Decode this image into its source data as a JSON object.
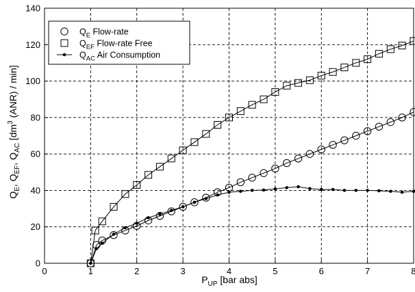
{
  "chart_data": {
    "type": "line",
    "xlabel": {
      "main": "P",
      "sub": "UP",
      "rest": " [bar abs]"
    },
    "ylabel": "Q_E, Q_EF, Q_AC [dm^3 (ANR) / min]",
    "xlim": [
      0,
      8
    ],
    "ylim": [
      0,
      140
    ],
    "xticks": [
      0,
      1,
      2,
      3,
      4,
      5,
      6,
      7,
      8
    ],
    "yticks": [
      0,
      20,
      40,
      60,
      80,
      100,
      120,
      140
    ],
    "grid": true,
    "grid_style": "dashed",
    "legend_position": "top-left",
    "series": [
      {
        "key": "QE",
        "name": "Flow-rate",
        "legend_symbol": "Q",
        "legend_sub": "E",
        "marker": "circle",
        "color": "#000000",
        "x": [
          1.0,
          1.125,
          1.25,
          1.5,
          1.75,
          2.0,
          2.25,
          2.5,
          2.75,
          3.0,
          3.25,
          3.5,
          3.75,
          4.0,
          4.25,
          4.5,
          4.75,
          5.0,
          5.25,
          5.5,
          5.75,
          6.0,
          6.25,
          6.5,
          6.75,
          7.0,
          7.25,
          7.5,
          7.75,
          8.0
        ],
        "y": [
          0,
          10,
          12.5,
          15.5,
          18,
          20.5,
          23.5,
          26,
          28.5,
          31,
          33.5,
          36,
          39,
          41.5,
          44.5,
          47,
          49.5,
          52,
          55,
          57.5,
          60,
          62.5,
          65,
          67.5,
          70,
          72.5,
          75,
          77.5,
          80,
          83
        ]
      },
      {
        "key": "QEF",
        "name": "Flow-rate Free",
        "legend_symbol": "Q",
        "legend_sub": "EF",
        "marker": "square",
        "color": "#000000",
        "x": [
          1.0,
          1.1,
          1.25,
          1.5,
          1.75,
          2.0,
          2.25,
          2.5,
          2.75,
          3.0,
          3.25,
          3.5,
          3.75,
          4.0,
          4.25,
          4.5,
          4.75,
          5.0,
          5.25,
          5.5,
          5.75,
          6.0,
          6.25,
          6.5,
          6.75,
          7.0,
          7.25,
          7.5,
          7.75,
          8.0
        ],
        "y": [
          0,
          18,
          23,
          31,
          38,
          43,
          48.5,
          53,
          57.5,
          62,
          66.5,
          71,
          76,
          80,
          83.5,
          87,
          90,
          94,
          97.5,
          99,
          100.5,
          103,
          105,
          107.5,
          110,
          112,
          115,
          117.5,
          119.5,
          122
        ]
      },
      {
        "key": "QAC",
        "name": "Air Consumption",
        "legend_symbol": "Q",
        "legend_sub": "AC",
        "marker": "dot",
        "color": "#000000",
        "x": [
          1.0,
          1.125,
          1.25,
          1.5,
          1.75,
          2.0,
          2.25,
          2.5,
          2.75,
          3.0,
          3.25,
          3.5,
          3.75,
          4.0,
          4.25,
          4.5,
          4.75,
          5.0,
          5.25,
          5.5,
          5.75,
          6.0,
          6.25,
          6.5,
          6.75,
          7.0,
          7.25,
          7.5,
          7.75,
          8.0
        ],
        "y": [
          0,
          8,
          11,
          16,
          19.5,
          22,
          25,
          27,
          29,
          31,
          33.5,
          35.5,
          37.5,
          39,
          39.5,
          40,
          40.2,
          40.8,
          41.5,
          42,
          41,
          40.5,
          40.5,
          40,
          40,
          40,
          39.8,
          39.5,
          39,
          39.5
        ]
      }
    ]
  }
}
